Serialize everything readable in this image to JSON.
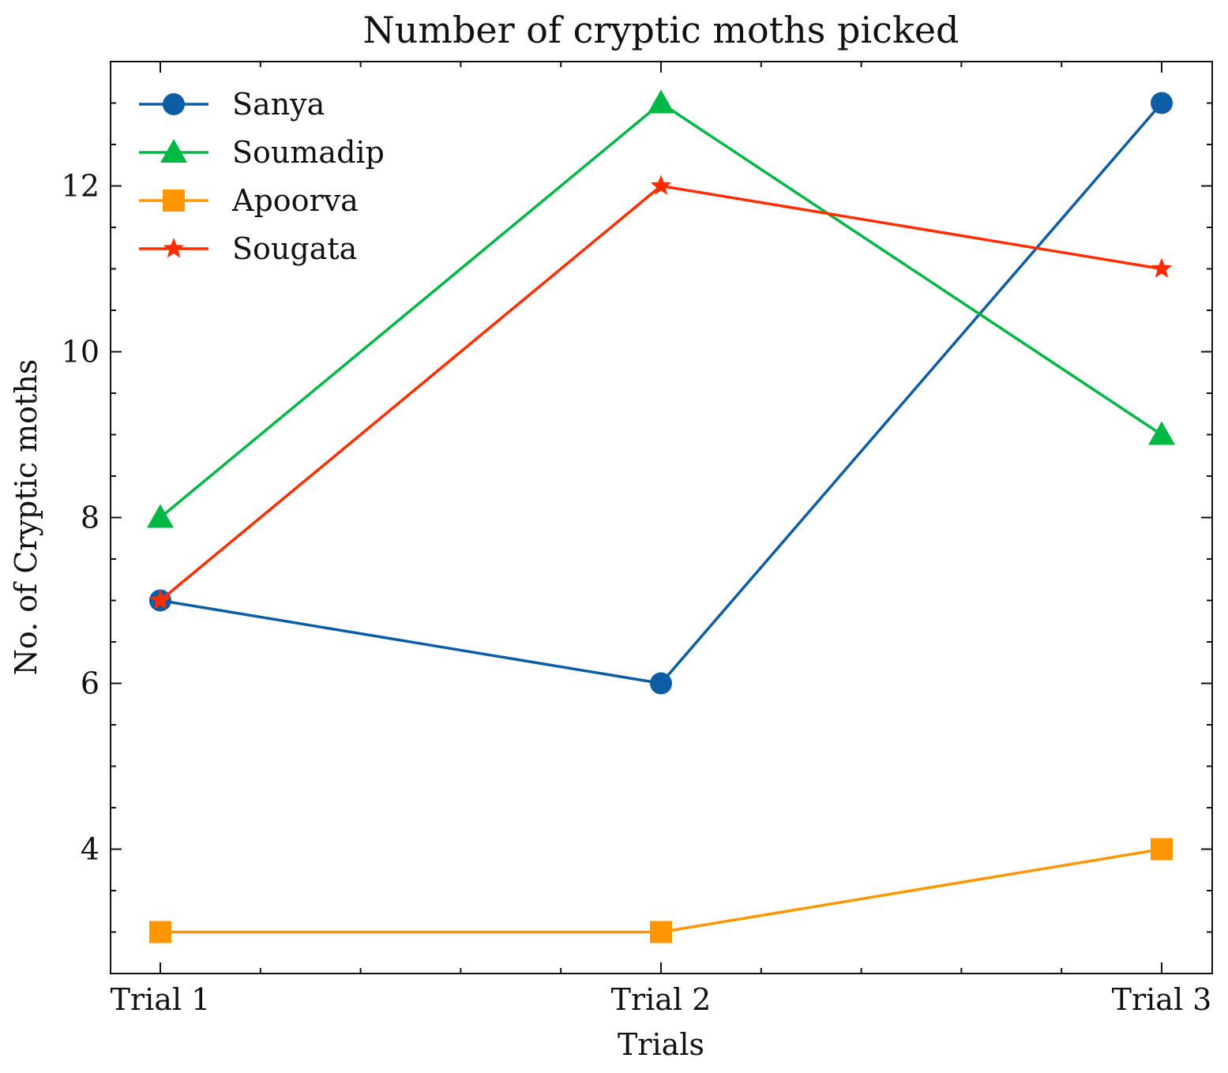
{
  "chart_data": {
    "type": "line",
    "title": "Number of cryptic moths picked",
    "xlabel": "Trials",
    "ylabel": "No. of Cryptic moths",
    "categories": [
      "Trial 1",
      "Trial 2",
      "Trial 3"
    ],
    "ylim": [
      2.5,
      13.5
    ],
    "yticks": [
      4,
      6,
      8,
      10,
      12
    ],
    "grid": false,
    "legend_position": "upper-left",
    "series": [
      {
        "name": "Sanya",
        "values": [
          7,
          6,
          13
        ],
        "color": "#0C5DA5",
        "marker": "circle"
      },
      {
        "name": "Soumadip",
        "values": [
          8,
          13,
          9
        ],
        "color": "#00B945",
        "marker": "triangle"
      },
      {
        "name": "Apoorva",
        "values": [
          3,
          3,
          4
        ],
        "color": "#FF9500",
        "marker": "square"
      },
      {
        "name": "Sougata",
        "values": [
          7,
          12,
          11
        ],
        "color": "#FF2C00",
        "marker": "star"
      }
    ]
  }
}
